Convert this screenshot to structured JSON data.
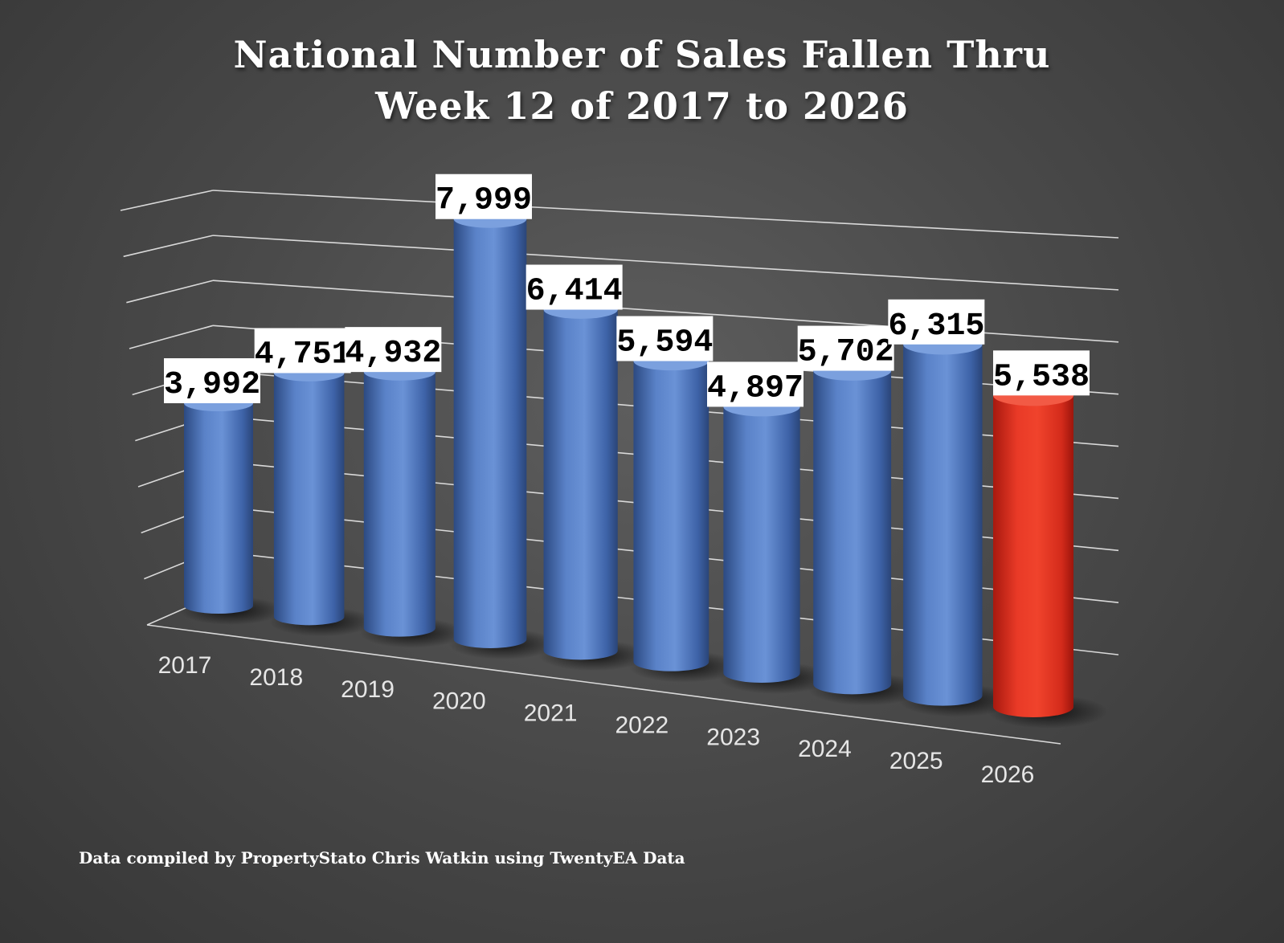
{
  "chart_data": {
    "type": "bar",
    "style": "3d-cylinder",
    "title": "National Number of Sales Fallen Thru",
    "subtitle": "Week 12 of 2017 to 2026",
    "categories": [
      "2017",
      "2018",
      "2019",
      "2020",
      "2021",
      "2022",
      "2023",
      "2024",
      "2025",
      "2026"
    ],
    "values": [
      3992,
      4751,
      4932,
      7999,
      6414,
      5594,
      4897,
      5702,
      6315,
      5538
    ],
    "data_labels": [
      "3,992",
      "4,751",
      "4,932",
      "7,999",
      "6,414",
      "5,594",
      "4,897",
      "5,702",
      "6,315",
      "5,538"
    ],
    "highlight_index": 9,
    "xlabel": "",
    "ylabel": "",
    "ylim": [
      0,
      9000
    ],
    "grid": true,
    "legend": "none"
  },
  "colors": {
    "bar": "#4f76bd",
    "highlight": "#e53323",
    "grid": "#d9d9d9",
    "label_bg": "#ffffff",
    "label_text": "#000000",
    "axis_text": "#e6e6e6"
  },
  "footer": {
    "source": "Data compiled by PropertyStato Chris Watkin using TwentyEA Data"
  }
}
